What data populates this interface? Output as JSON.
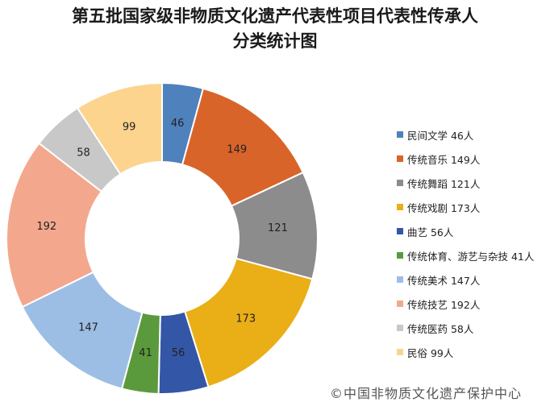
{
  "title_line1": "第五批国家级非物质文化遗产代表性项目代表性传承人",
  "title_line2": "分类统计图",
  "credit": "©中国非物质文化遗产保护中心",
  "chart_data": {
    "type": "pie",
    "donut": true,
    "start": "top, clockwise",
    "legend_position": "right",
    "slices": [
      {
        "label": "民间文学 46人",
        "value": 46,
        "color": "#4F81BD"
      },
      {
        "label": "传统音乐 149人",
        "value": 149,
        "color": "#D9642A"
      },
      {
        "label": "传统舞蹈 121人",
        "value": 121,
        "color": "#8C8C8C"
      },
      {
        "label": "传统戏剧 173人",
        "value": 173,
        "color": "#EAAE16"
      },
      {
        "label": "曲艺 56人",
        "value": 56,
        "color": "#3456A6"
      },
      {
        "label": "传统体育、游艺与杂技 41人",
        "value": 41,
        "color": "#5B9A3C"
      },
      {
        "label": "传统美术 147人",
        "value": 147,
        "color": "#9DBEE4"
      },
      {
        "label": "传统技艺 192人",
        "value": 192,
        "color": "#F3A88E"
      },
      {
        "label": "传统医药 58人",
        "value": 58,
        "color": "#C8C8C8"
      },
      {
        "label": "民俗 99人",
        "value": 99,
        "color": "#FCD48E"
      }
    ]
  }
}
